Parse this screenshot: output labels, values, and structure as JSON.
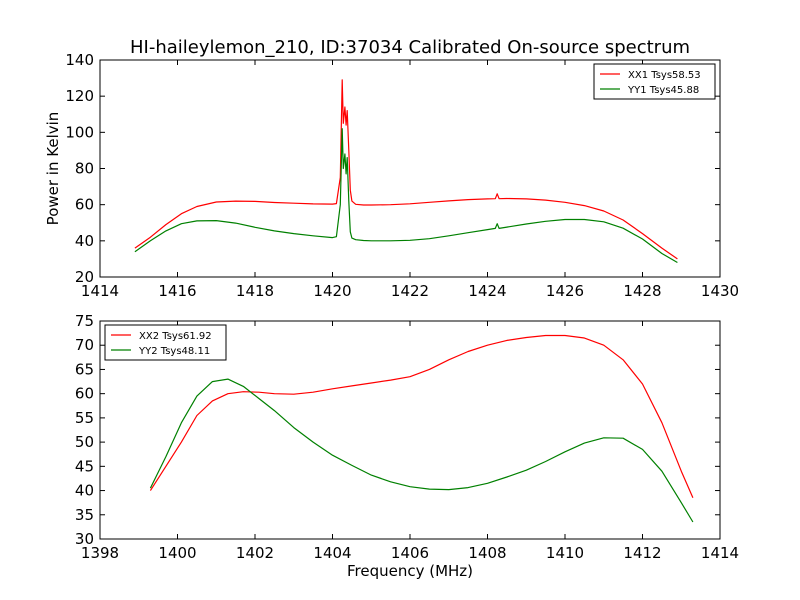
{
  "title": "HI-haileylemon_210, ID:37034 Calibrated On-source spectrum",
  "chart_data": [
    {
      "type": "line",
      "xlabel": "",
      "ylabel": "Power in Kelvin",
      "xlim": [
        1414,
        1430
      ],
      "ylim": [
        20,
        140
      ],
      "xticks": [
        1414,
        1416,
        1418,
        1420,
        1422,
        1424,
        1426,
        1428,
        1430
      ],
      "yticks": [
        20,
        40,
        60,
        80,
        100,
        120,
        140
      ],
      "grid": false,
      "legend": "top-right",
      "series": [
        {
          "name": "XX1 Tsys58.53",
          "color": "#ff0000",
          "x": [
            1414.9,
            1415.3,
            1415.7,
            1416.1,
            1416.5,
            1417.0,
            1417.5,
            1418.0,
            1418.5,
            1419.0,
            1419.5,
            1420.0,
            1420.1,
            1420.2,
            1420.25,
            1420.28,
            1420.32,
            1420.35,
            1420.38,
            1420.42,
            1420.46,
            1420.5,
            1420.6,
            1420.8,
            1421.0,
            1421.5,
            1422.0,
            1422.5,
            1423.0,
            1423.5,
            1424.0,
            1424.2,
            1424.25,
            1424.3,
            1424.5,
            1425.0,
            1425.5,
            1426.0,
            1426.5,
            1427.0,
            1427.5,
            1428.0,
            1428.5,
            1428.9
          ],
          "y": [
            36,
            42,
            49,
            55,
            59,
            61.5,
            62,
            61.8,
            61.2,
            60.8,
            60.4,
            60.3,
            60.6,
            75,
            129,
            105,
            114,
            104,
            112,
            90,
            68,
            62,
            60.2,
            59.8,
            59.8,
            60,
            60.5,
            61.3,
            62.1,
            62.8,
            63.2,
            63.3,
            66,
            63.3,
            63.4,
            63.2,
            62.5,
            61.3,
            59.5,
            56.5,
            51.5,
            44,
            36,
            30
          ]
        },
        {
          "name": "YY1 Tsys45.88",
          "color": "#008000",
          "x": [
            1414.9,
            1415.3,
            1415.7,
            1416.1,
            1416.5,
            1417.0,
            1417.5,
            1418.0,
            1418.5,
            1419.0,
            1419.5,
            1420.0,
            1420.1,
            1420.2,
            1420.25,
            1420.28,
            1420.32,
            1420.35,
            1420.38,
            1420.42,
            1420.46,
            1420.5,
            1420.6,
            1420.8,
            1421.0,
            1421.5,
            1422.0,
            1422.5,
            1423.0,
            1423.5,
            1424.0,
            1424.2,
            1424.25,
            1424.3,
            1424.5,
            1425.0,
            1425.5,
            1426.0,
            1426.5,
            1427.0,
            1427.5,
            1428.0,
            1428.5,
            1428.9
          ],
          "y": [
            34,
            40,
            45.5,
            49.5,
            51,
            51.2,
            49.8,
            47.5,
            45.5,
            44,
            42.8,
            41.8,
            42.3,
            60,
            102,
            80,
            88,
            77,
            86,
            62,
            45,
            41.5,
            40.6,
            40.2,
            40,
            40,
            40.3,
            41.2,
            42.8,
            44.5,
            46.2,
            46.9,
            49.5,
            46.9,
            47.6,
            49.3,
            50.8,
            51.8,
            51.8,
            50.5,
            47,
            41,
            33,
            28
          ]
        }
      ]
    },
    {
      "type": "line",
      "xlabel": "Frequency (MHz)",
      "ylabel": "",
      "xlim": [
        1398,
        1414
      ],
      "ylim": [
        30,
        75
      ],
      "xticks": [
        1398,
        1400,
        1402,
        1404,
        1406,
        1408,
        1410,
        1412,
        1414
      ],
      "yticks": [
        30,
        35,
        40,
        45,
        50,
        55,
        60,
        65,
        70,
        75
      ],
      "grid": false,
      "legend": "top-left",
      "series": [
        {
          "name": "XX2 Tsys61.92",
          "color": "#ff0000",
          "x": [
            1399.3,
            1399.7,
            1400.1,
            1400.5,
            1400.9,
            1401.3,
            1401.7,
            1402.1,
            1402.5,
            1403.0,
            1403.5,
            1404.0,
            1404.5,
            1405.0,
            1405.5,
            1406.0,
            1406.5,
            1407.0,
            1407.5,
            1408.0,
            1408.5,
            1409.0,
            1409.5,
            1410.0,
            1410.5,
            1411.0,
            1411.5,
            1412.0,
            1412.5,
            1413.0,
            1413.3
          ],
          "y": [
            40,
            45,
            50,
            55.5,
            58.5,
            60,
            60.4,
            60.3,
            60,
            59.9,
            60.3,
            61,
            61.6,
            62.2,
            62.8,
            63.5,
            65,
            67,
            68.7,
            70,
            71,
            71.6,
            72,
            72,
            71.5,
            70,
            67,
            62,
            54,
            44,
            38.5
          ]
        },
        {
          "name": "YY2 Tsys48.11",
          "color": "#008000",
          "x": [
            1399.3,
            1399.7,
            1400.1,
            1400.5,
            1400.9,
            1401.3,
            1401.7,
            1402.1,
            1402.5,
            1403.0,
            1403.5,
            1404.0,
            1404.5,
            1405.0,
            1405.5,
            1406.0,
            1406.5,
            1407.0,
            1407.5,
            1408.0,
            1408.5,
            1409.0,
            1409.5,
            1410.0,
            1410.5,
            1411.0,
            1411.5,
            1412.0,
            1412.5,
            1413.0,
            1413.3
          ],
          "y": [
            40.5,
            47,
            54,
            59.5,
            62.5,
            63,
            61.5,
            59,
            56.5,
            53,
            50,
            47.3,
            45.2,
            43.2,
            41.8,
            40.8,
            40.3,
            40.2,
            40.6,
            41.5,
            42.8,
            44.2,
            46,
            48,
            49.8,
            50.9,
            50.8,
            48.5,
            44,
            37.5,
            33.5
          ]
        }
      ]
    }
  ]
}
